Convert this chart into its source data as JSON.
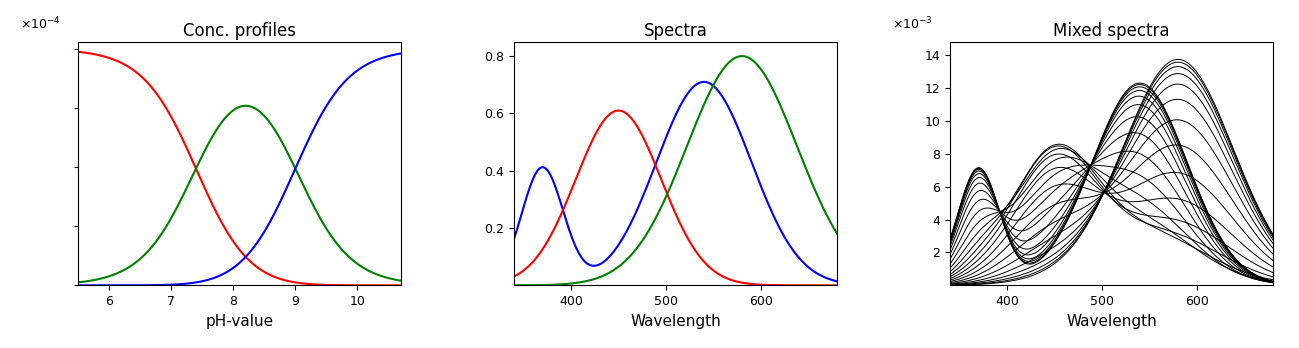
{
  "title1": "Conc. profiles",
  "title2": "Spectra",
  "title3": "Mixed spectra",
  "xlabel1": "pH-value",
  "xlabel2": "Wavelength",
  "xlabel3": "Wavelength",
  "panel1": {
    "ph_min": 5.5,
    "ph_max": 10.7,
    "pKa1": 7.4,
    "pKa2": 9.0,
    "total_conc": 0.0001,
    "colors": [
      "red",
      "green",
      "blue"
    ]
  },
  "panel2": {
    "wl_min": 340,
    "wl_max": 680,
    "blue_peak1": 370,
    "blue_sigma1": 22,
    "blue_amp1": 0.41,
    "blue_peak2": 540,
    "blue_sigma2": 50,
    "blue_amp2": 0.71,
    "red_peak": 450,
    "red_sigma": 45,
    "red_amp": 0.61,
    "green_peak": 580,
    "green_sigma": 58,
    "green_amp": 0.8,
    "ylim": [
      0,
      0.85
    ],
    "yticks": [
      0.2,
      0.4,
      0.6,
      0.8
    ],
    "xticks": [
      400,
      500,
      600
    ]
  },
  "panel3": {
    "n_curves": 25,
    "scale": 175.0,
    "ylim_max": 0.0148,
    "ytick_vals": [
      0.002,
      0.004,
      0.006,
      0.008,
      0.01,
      0.012,
      0.014
    ],
    "ytick_labels": [
      "2",
      "4",
      "6",
      "8",
      "10",
      "12",
      "14"
    ],
    "xticks": [
      400,
      500,
      600
    ]
  },
  "bg_color": "#ffffff",
  "font_size_title": 12,
  "font_size_label": 11,
  "font_size_tick": 9,
  "font_size_exp": 9
}
